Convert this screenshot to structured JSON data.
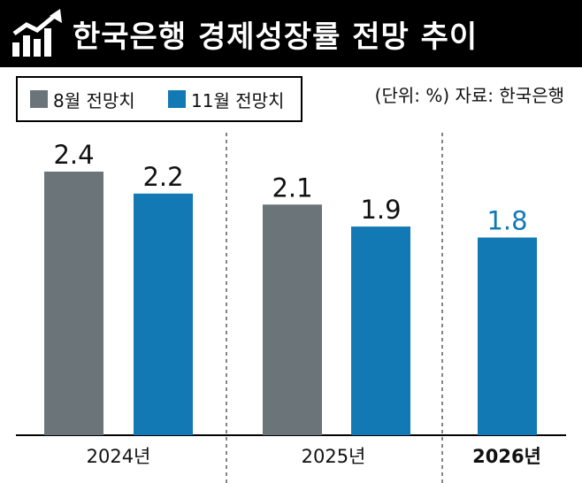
{
  "title": "한국은행 경제성장률 전망 추이",
  "unit_note": "(단위: %) 자료: 한국은행",
  "colors": {
    "august": "#6b7579",
    "november": "#1279b4",
    "title_bg": "#000000",
    "highlight_label": "#1279b4"
  },
  "chart_data": {
    "type": "bar",
    "categories": [
      "2024년",
      "2025년",
      "2026년"
    ],
    "series": [
      {
        "name": "8월 전망치",
        "values": [
          2.4,
          2.1,
          null
        ]
      },
      {
        "name": "11월 전망치",
        "values": [
          2.2,
          1.9,
          1.8
        ]
      }
    ],
    "ylim": [
      0,
      2.4
    ],
    "grid": false,
    "legend_position": "top-left"
  }
}
